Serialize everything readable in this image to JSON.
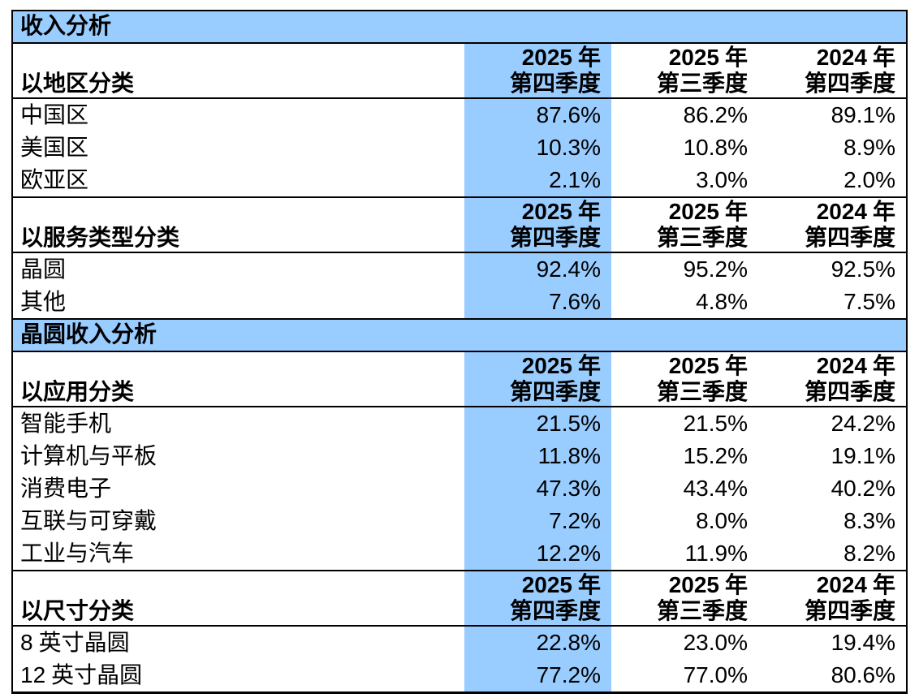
{
  "style": {
    "highlight_blue": "#99CCFF",
    "border_color": "#000000",
    "text_color": "#000000",
    "background": "#FFFFFF"
  },
  "bands": [
    {
      "title": "收入分析"
    },
    {
      "title": "晶圆收入分析"
    }
  ],
  "columns": [
    {
      "year_num": "2025",
      "year_suffix": "年",
      "quarter": "第四季度",
      "highlighted": true
    },
    {
      "year_num": "2025",
      "year_suffix": "年",
      "quarter": "第三季度",
      "highlighted": false
    },
    {
      "year_num": "2024",
      "year_suffix": "年",
      "quarter": "第四季度",
      "highlighted": false
    }
  ],
  "groups": [
    {
      "label": "以地区分类",
      "rows": [
        {
          "label_num": "",
          "label_text": "中国区",
          "values": [
            "87.6%",
            "86.2%",
            "89.1%"
          ]
        },
        {
          "label_num": "",
          "label_text": "美国区",
          "values": [
            "10.3%",
            "10.8%",
            "8.9%"
          ]
        },
        {
          "label_num": "",
          "label_text": "欧亚区",
          "values": [
            "2.1%",
            "3.0%",
            "2.0%"
          ]
        }
      ]
    },
    {
      "label": "以服务类型分类",
      "rows": [
        {
          "label_num": "",
          "label_text": "晶圆",
          "values": [
            "92.4%",
            "95.2%",
            "92.5%"
          ]
        },
        {
          "label_num": "",
          "label_text": "其他",
          "values": [
            "7.6%",
            "4.8%",
            "7.5%"
          ]
        }
      ]
    },
    {
      "label": "以应用分类",
      "rows": [
        {
          "label_num": "",
          "label_text": "智能手机",
          "values": [
            "21.5%",
            "21.5%",
            "24.2%"
          ]
        },
        {
          "label_num": "",
          "label_text": "计算机与平板",
          "values": [
            "11.8%",
            "15.2%",
            "19.1%"
          ]
        },
        {
          "label_num": "",
          "label_text": "消费电子",
          "values": [
            "47.3%",
            "43.4%",
            "40.2%"
          ]
        },
        {
          "label_num": "",
          "label_text": "互联与可穿戴",
          "values": [
            "7.2%",
            "8.0%",
            "8.3%"
          ]
        },
        {
          "label_num": "",
          "label_text": "工业与汽车",
          "values": [
            "12.2%",
            "11.9%",
            "8.2%"
          ]
        }
      ]
    },
    {
      "label": "以尺寸分类",
      "rows": [
        {
          "label_num": "8",
          "label_text": "英寸晶圆",
          "values": [
            "22.8%",
            "23.0%",
            "19.4%"
          ]
        },
        {
          "label_num": "12",
          "label_text": "英寸晶圆",
          "values": [
            "77.2%",
            "77.0%",
            "80.6%"
          ]
        }
      ]
    }
  ]
}
